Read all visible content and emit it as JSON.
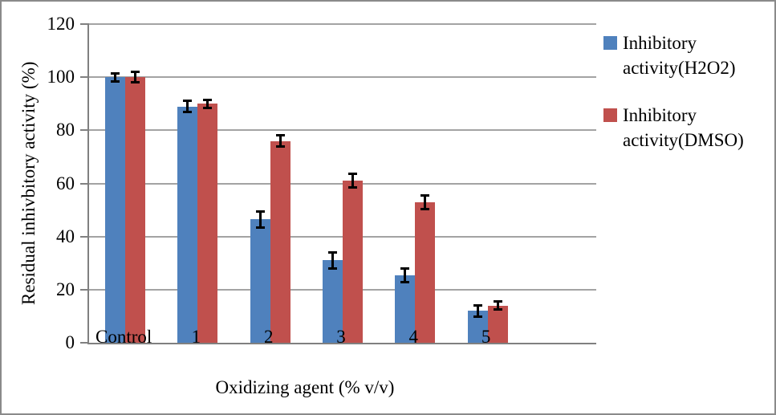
{
  "chart_data": {
    "type": "bar",
    "title": "",
    "xlabel": "Oxidizing agent (% v/v)",
    "ylabel": "Residual inhivbitory activity (%)",
    "categories": [
      "Control",
      "1",
      "2",
      "3",
      "4",
      "5"
    ],
    "series": [
      {
        "name": "Inhibitory activity(H2O2)",
        "color": "#4F81BD",
        "values": [
          100,
          89,
          46.5,
          31,
          25.5,
          12
        ],
        "errors": [
          2,
          2.5,
          3.5,
          3.5,
          3,
          2.5
        ]
      },
      {
        "name": "Inhibitory activity(DMSO)",
        "color": "#C0504D",
        "values": [
          100,
          90,
          76,
          61,
          53,
          14
        ],
        "errors": [
          2.5,
          2,
          2.5,
          3,
          3,
          2
        ]
      }
    ],
    "ylim": [
      0,
      120
    ],
    "yticks": [
      0,
      20,
      40,
      60,
      80,
      100,
      120
    ],
    "grid": "horizontal",
    "legend_position": "right",
    "error_bars": true,
    "axis_color": "#808080",
    "gridline_color": "#A3A3A3",
    "error_bar_color": "#000000"
  }
}
